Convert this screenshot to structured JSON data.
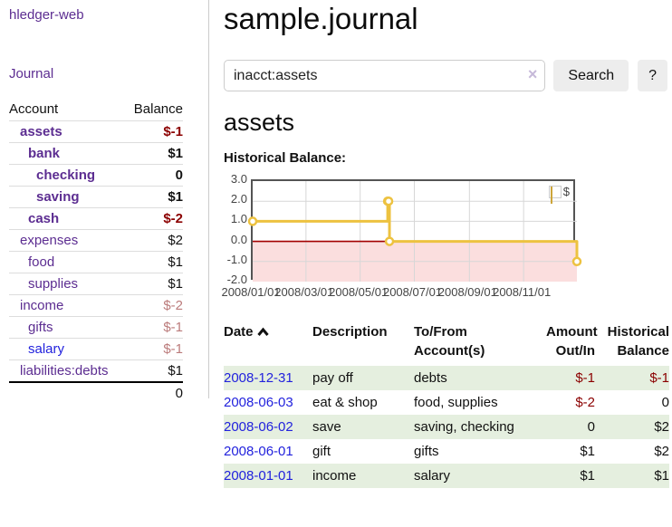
{
  "sidebar": {
    "brand": "hledger-web",
    "journal_link": "Journal",
    "accounts_table": {
      "account_header": "Account",
      "balance_header": "Balance",
      "rows": [
        {
          "name": "assets",
          "balance": "$-1",
          "depth": 1,
          "bold": true,
          "balance_style": "negstrong"
        },
        {
          "name": "bank",
          "balance": "$1",
          "depth": 2,
          "bold": true,
          "balance_style": "strong"
        },
        {
          "name": "checking",
          "balance": "0",
          "depth": 3,
          "bold": true,
          "balance_style": "strong"
        },
        {
          "name": "saving",
          "balance": "$1",
          "depth": 3,
          "bold": true,
          "balance_style": "strong"
        },
        {
          "name": "cash",
          "balance": "$-2",
          "depth": 2,
          "bold": true,
          "balance_style": "negstrong"
        },
        {
          "name": "expenses",
          "balance": "$2",
          "depth": 1,
          "bold": false,
          "balance_style": "normal"
        },
        {
          "name": "food",
          "balance": "$1",
          "depth": 2,
          "bold": false,
          "balance_style": "normal"
        },
        {
          "name": "supplies",
          "balance": "$1",
          "depth": 2,
          "bold": false,
          "balance_style": "normal"
        },
        {
          "name": "income",
          "balance": "$-2",
          "depth": 1,
          "bold": false,
          "balance_style": "negmuted"
        },
        {
          "name": "gifts",
          "balance": "$-1",
          "depth": 2,
          "bold": false,
          "balance_style": "negmuted"
        },
        {
          "name": "salary",
          "balance": "$-1",
          "depth": 2,
          "bold": false,
          "balance_style": "negmuted",
          "link_style": "blue"
        },
        {
          "name": "liabilities:debts",
          "balance": "$1",
          "depth": 1,
          "bold": false,
          "balance_style": "normal"
        }
      ],
      "total": "0"
    }
  },
  "header": {
    "title": "sample.journal"
  },
  "search": {
    "query": "inacct:assets",
    "clear_icon": "×",
    "search_button": "Search",
    "help_button": "?"
  },
  "account_page": {
    "heading": "assets",
    "chart_title": "Historical Balance:"
  },
  "chart_data": {
    "type": "line",
    "step": true,
    "title": "Historical Balance",
    "series": [
      {
        "name": "$",
        "color": "#edc240",
        "points": [
          [
            "2008/01/01",
            1
          ],
          [
            "2008/06/01",
            2
          ],
          [
            "2008/06/02",
            2
          ],
          [
            "2008/06/03",
            0
          ],
          [
            "2008/12/31",
            -1
          ]
        ]
      }
    ],
    "x_ticks": [
      "2008/01/01",
      "2008/03/01",
      "2008/05/01",
      "2008/07/01",
      "2008/09/01",
      "2008/11/01"
    ],
    "y_ticks": [
      "3.0",
      "2.0",
      "1.0",
      "0.0",
      "-1.0",
      "-2.0"
    ],
    "ylim": [
      -2,
      3
    ],
    "legend": "$",
    "legend_position": "top-right",
    "grid": true,
    "negative_region_color": "#fbdede",
    "zero_line_color": "#a30000",
    "border_color": "#545454"
  },
  "register": {
    "headers": {
      "date": "Date",
      "description": "Description",
      "accounts": [
        "To/From",
        "Account(s)"
      ],
      "amount": [
        "Amount",
        "Out/In"
      ],
      "balance": [
        "Historical",
        "Balance"
      ]
    },
    "sort_icon": "caret-up",
    "rows": [
      {
        "date": "2008-12-31",
        "description": "pay off",
        "accounts": "debts",
        "amount": "$-1",
        "amount_style": "neg",
        "balance": "$-1",
        "balance_style": "neg",
        "striped": true
      },
      {
        "date": "2008-06-03",
        "description": "eat & shop",
        "accounts": "food, supplies",
        "amount": "$-2",
        "amount_style": "neg",
        "balance": "0",
        "balance_style": "pos",
        "striped": false
      },
      {
        "date": "2008-06-02",
        "description": "save",
        "accounts": "saving, checking",
        "amount": "0",
        "amount_style": "pos",
        "balance": "$2",
        "balance_style": "pos",
        "striped": true
      },
      {
        "date": "2008-06-01",
        "description": "gift",
        "accounts": "gifts",
        "amount": "$1",
        "amount_style": "pos",
        "balance": "$2",
        "balance_style": "pos",
        "striped": false
      },
      {
        "date": "2008-01-01",
        "description": "income",
        "accounts": "salary",
        "amount": "$1",
        "amount_style": "pos",
        "balance": "$1",
        "balance_style": "pos",
        "striped": true
      }
    ]
  }
}
